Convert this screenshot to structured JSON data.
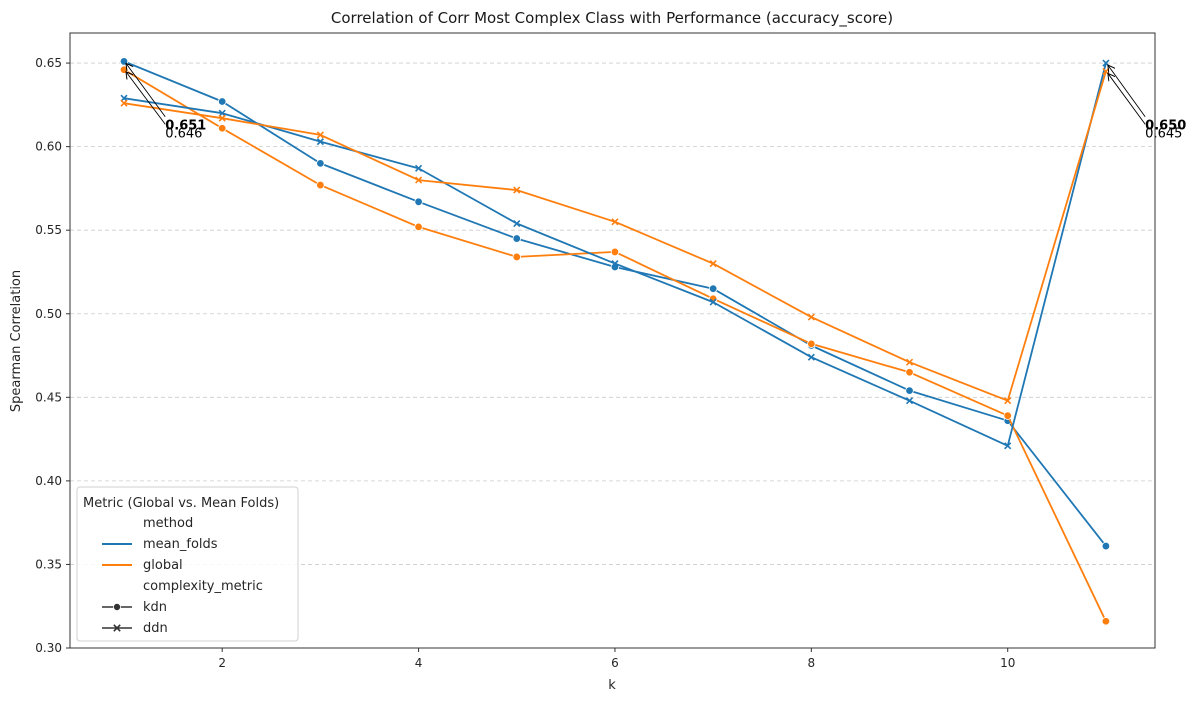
{
  "chart_data": {
    "type": "line",
    "title": "Correlation of Corr Most Complex Class with Performance (accuracy_score)",
    "xlabel": "k",
    "ylabel": "Spearman Correlation",
    "xlim": [
      0.45,
      11.5
    ],
    "ylim": [
      0.3,
      0.668
    ],
    "xticks": [
      2,
      4,
      6,
      8,
      10
    ],
    "yticks": [
      0.3,
      0.35,
      0.4,
      0.45,
      0.5,
      0.55,
      0.6,
      0.65
    ],
    "grid": "horizontal-dashed",
    "x": [
      1,
      2,
      3,
      4,
      5,
      6,
      7,
      8,
      9,
      10,
      11
    ],
    "series": [
      {
        "name": "mean_folds",
        "metric": "kdn",
        "color": "#1f77b4",
        "marker": "circle",
        "values": [
          0.651,
          0.627,
          0.59,
          0.567,
          0.545,
          0.528,
          0.515,
          0.481,
          0.454,
          0.436,
          0.361
        ]
      },
      {
        "name": "global",
        "metric": "kdn",
        "color": "#ff7f0e",
        "marker": "circle",
        "values": [
          0.646,
          0.611,
          0.577,
          0.552,
          0.534,
          0.537,
          0.509,
          0.482,
          0.465,
          0.439,
          0.316
        ]
      },
      {
        "name": "mean_folds",
        "metric": "ddn",
        "color": "#1f77b4",
        "marker": "x",
        "values": [
          0.629,
          0.62,
          0.603,
          0.587,
          0.554,
          0.53,
          0.507,
          0.474,
          0.448,
          0.421,
          0.65
        ]
      },
      {
        "name": "global",
        "metric": "ddn",
        "color": "#ff7f0e",
        "marker": "x",
        "values": [
          0.626,
          0.617,
          0.607,
          0.58,
          0.574,
          0.555,
          0.53,
          0.498,
          0.471,
          0.448,
          0.645
        ]
      }
    ],
    "annotations": [
      {
        "text": "0.651",
        "x": 1,
        "y": 0.651,
        "bold": true,
        "tx": 1.42,
        "ty": 0.6155
      },
      {
        "text": "0.646",
        "x": 1,
        "y": 0.646,
        "bold": false,
        "tx": 1.42,
        "ty": 0.611
      },
      {
        "text": "0.650",
        "x": 11,
        "y": 0.65,
        "bold": true,
        "tx": 11.4,
        "ty": 0.6155
      },
      {
        "text": "0.645",
        "x": 11,
        "y": 0.645,
        "bold": false,
        "tx": 11.4,
        "ty": 0.611
      }
    ],
    "legend": {
      "title": "Metric (Global vs. Mean Folds)",
      "placement": "lower-left",
      "entries": [
        {
          "label": "method",
          "kind": "header"
        },
        {
          "label": "mean_folds",
          "kind": "line",
          "color": "#1f77b4"
        },
        {
          "label": "global",
          "kind": "line",
          "color": "#ff7f0e"
        },
        {
          "label": "complexity_metric",
          "kind": "header"
        },
        {
          "label": "kdn",
          "kind": "marker",
          "marker": "circle",
          "color": "#333333"
        },
        {
          "label": "ddn",
          "kind": "marker",
          "marker": "x",
          "color": "#333333"
        }
      ]
    }
  }
}
